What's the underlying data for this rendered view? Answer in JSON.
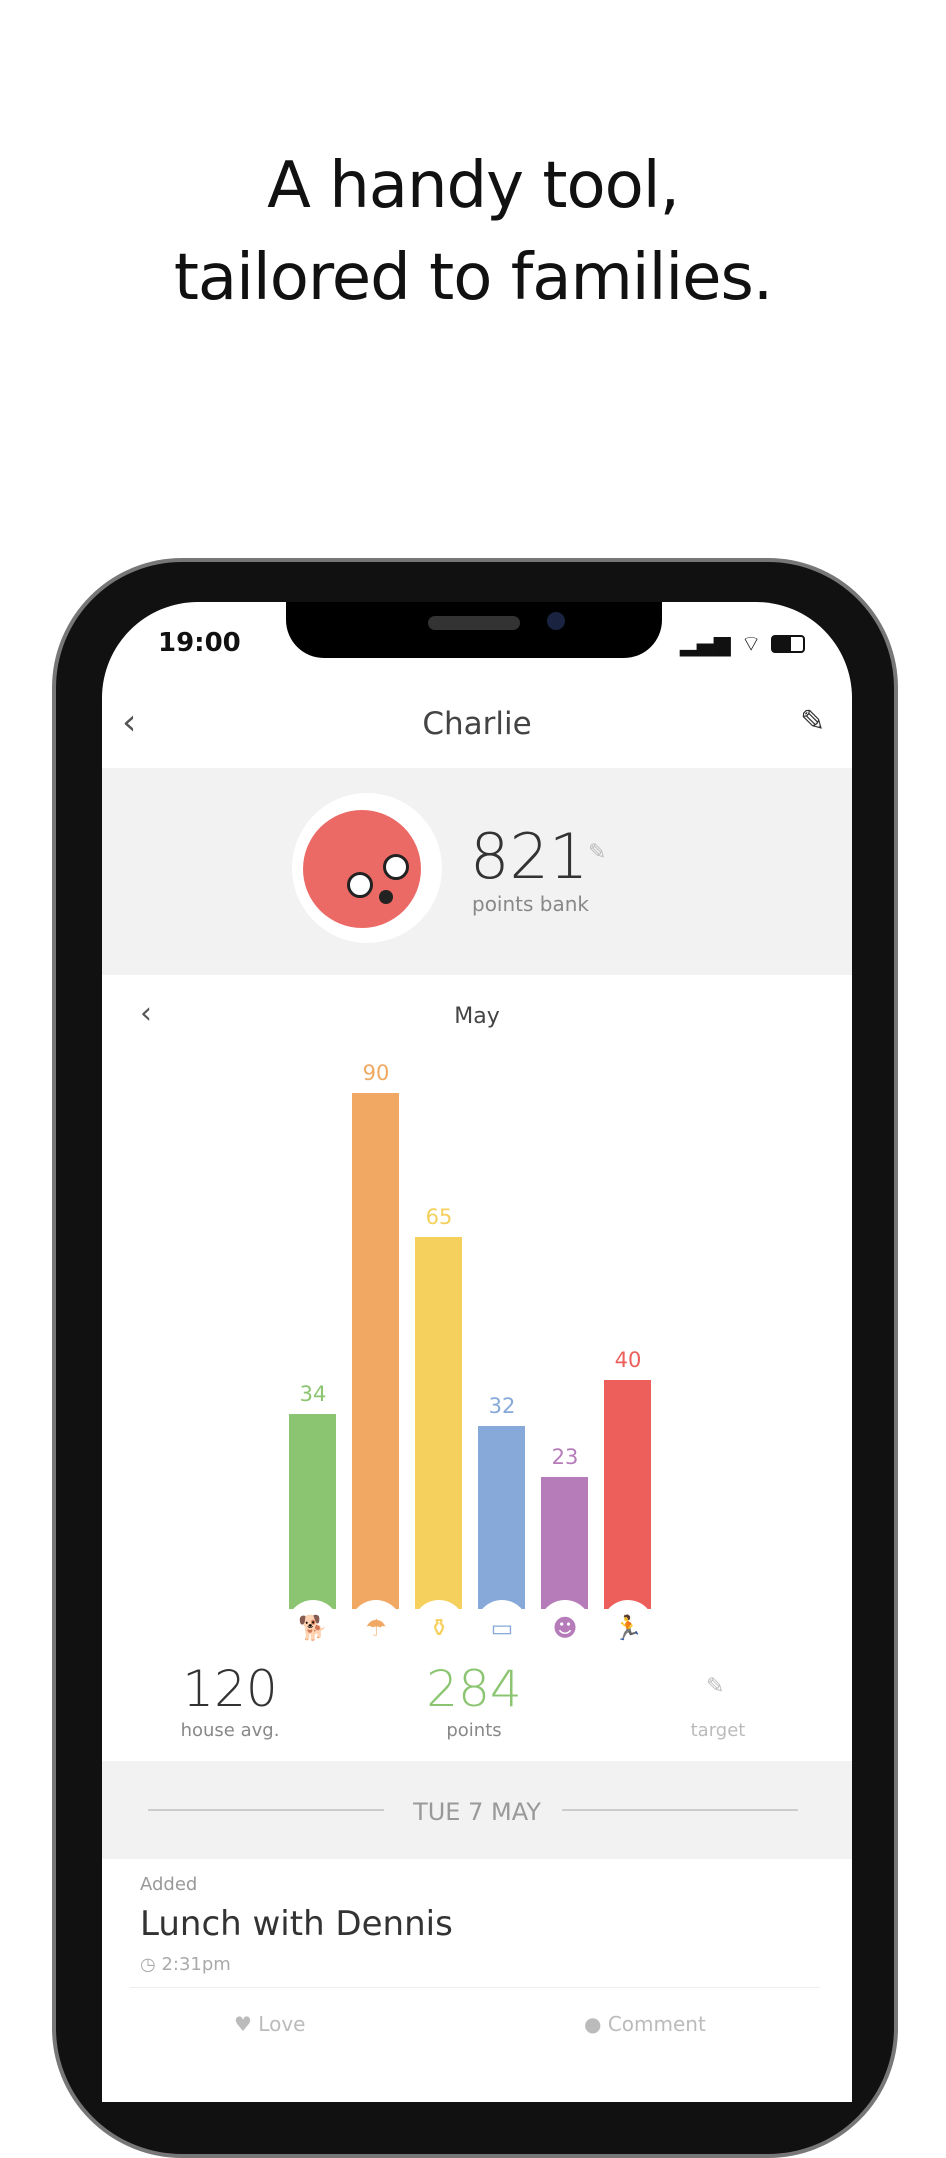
{
  "headline": {
    "line1": "A handy tool,",
    "line2": "tailored to families."
  },
  "status_bar": {
    "time": "19:00"
  },
  "header": {
    "title": "Charlie"
  },
  "profile": {
    "points_bank": "821",
    "points_bank_label": "points bank"
  },
  "chart_data": {
    "type": "bar",
    "title": "May",
    "categories": [
      "pet",
      "shower",
      "cleaning",
      "bed",
      "mind",
      "exercise"
    ],
    "values": [
      34,
      90,
      65,
      32,
      23,
      40
    ],
    "colors": [
      "#8cc571",
      "#f0a862",
      "#f6d05c",
      "#86a9d9",
      "#b67bb9",
      "#ec5f5b"
    ],
    "icons": [
      "dog-icon",
      "shower-icon",
      "spray-bottle-icon",
      "bed-icon",
      "head-brain-icon",
      "running-person-icon"
    ]
  },
  "stats": {
    "house_avg": "120",
    "house_avg_label": "house avg.",
    "points": "284",
    "points_label": "points",
    "target_label": "target"
  },
  "feed": {
    "date": "TUE 7 MAY",
    "items": [
      {
        "kind": "Added",
        "title": "Lunch with Dennis",
        "time": "2:31pm",
        "love": "Love",
        "comment": "Comment"
      }
    ]
  }
}
